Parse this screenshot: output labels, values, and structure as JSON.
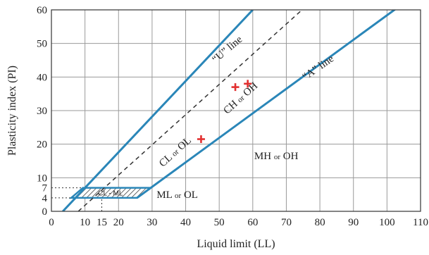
{
  "chart_data": {
    "type": "scatter",
    "title": "",
    "xlabel": "Liquid limit (LL)",
    "ylabel": "Plasticity index (PI)",
    "xlim": [
      0,
      110
    ],
    "ylim": [
      0,
      60
    ],
    "x_ticks": [
      0,
      10,
      15,
      20,
      30,
      40,
      50,
      60,
      70,
      80,
      90,
      100,
      110
    ],
    "x_tick_labels": [
      "0",
      "10",
      "15",
      "20",
      "30",
      "40",
      "50",
      "60",
      "70",
      "80",
      "90",
      "100",
      "110"
    ],
    "y_ticks": [
      0,
      4,
      7,
      10,
      20,
      30,
      40,
      50,
      60
    ],
    "y_tick_labels": [
      "0",
      "4",
      "7",
      "10",
      "20",
      "30",
      "40",
      "50",
      "60"
    ],
    "grid_x": [
      0,
      10,
      20,
      30,
      40,
      50,
      60,
      70,
      80,
      90,
      100,
      110
    ],
    "grid_y": [
      0,
      10,
      20,
      30,
      40,
      50,
      60
    ],
    "grid": true,
    "lines": {
      "a_line": {
        "label": "“A” line",
        "points": [
          [
            25.5,
            4
          ],
          [
            110,
            65.68
          ]
        ]
      },
      "u_line": {
        "label": "“U” line",
        "points": [
          [
            8,
            0
          ],
          [
            75,
            60.3
          ]
        ]
      },
      "left_boundary": {
        "points": [
          [
            3.4,
            0
          ],
          [
            60,
            60
          ]
        ]
      }
    },
    "clml_zone": {
      "label": "CL - ML",
      "points": [
        [
          5.9,
          4
        ],
        [
          25.5,
          4
        ],
        [
          29.6,
          7
        ],
        [
          9.4,
          7
        ]
      ]
    },
    "guide_lines": [
      {
        "points": [
          [
            0,
            7
          ],
          [
            9.4,
            7
          ]
        ]
      },
      {
        "points": [
          [
            0,
            4
          ],
          [
            5.9,
            4
          ]
        ]
      },
      {
        "points": [
          [
            15,
            0
          ],
          [
            15,
            4
          ]
        ]
      }
    ],
    "zones": [
      {
        "main": "CL",
        "small": "or",
        "rest": "OL",
        "x": 37.5,
        "y": 17,
        "angle": -42
      },
      {
        "main": "CH",
        "small": "or",
        "rest": "OH",
        "x": 57,
        "y": 33,
        "angle": -42
      },
      {
        "main": "ML",
        "small": "or",
        "rest": "OL",
        "x": 37.5,
        "y": 4,
        "angle": 0
      },
      {
        "main": "MH",
        "small": "or",
        "rest": "OH",
        "x": 67,
        "y": 15.5,
        "angle": 0
      }
    ],
    "line_labels": [
      {
        "key": "u_line",
        "x": 53,
        "y": 47.5,
        "angle": -40
      },
      {
        "key": "a_line",
        "x": 80,
        "y": 42,
        "angle": -35
      }
    ],
    "samples": [
      {
        "x": 44.6,
        "y": 21.5
      },
      {
        "x": 54.8,
        "y": 37
      },
      {
        "x": 58.5,
        "y": 38
      }
    ]
  }
}
